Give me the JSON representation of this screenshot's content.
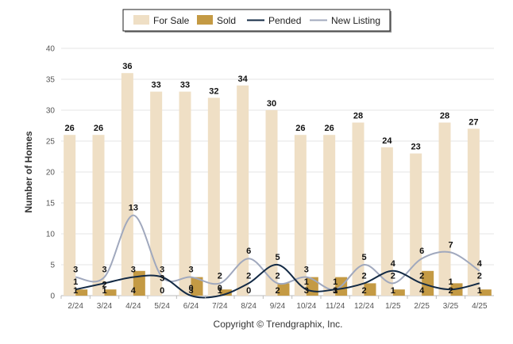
{
  "chart_data": {
    "type": "bar",
    "title": "",
    "xlabel": "",
    "ylabel": "Number of Homes",
    "ylim": [
      0,
      40
    ],
    "yticks": [
      0,
      5,
      10,
      15,
      20,
      25,
      30,
      35,
      40
    ],
    "grid": true,
    "legend_position": "top",
    "categories": [
      "2/24",
      "3/24",
      "4/24",
      "5/24",
      "6/24",
      "7/24",
      "8/24",
      "9/24",
      "10/24",
      "11/24",
      "12/24",
      "1/25",
      "2/25",
      "3/25",
      "4/25"
    ],
    "series": [
      {
        "name": "For Sale",
        "kind": "bar",
        "color": "#efdfc5",
        "values": [
          26,
          26,
          36,
          33,
          33,
          32,
          34,
          30,
          26,
          26,
          28,
          24,
          23,
          28,
          27
        ]
      },
      {
        "name": "Sold",
        "kind": "bar",
        "color": "#c49a44",
        "values": [
          1,
          1,
          4,
          0,
          3,
          1,
          0,
          2,
          3,
          3,
          2,
          1,
          4,
          2,
          1
        ]
      },
      {
        "name": "Pended",
        "kind": "line",
        "color": "#132a45",
        "values": [
          1,
          2,
          3,
          3,
          0,
          0,
          2,
          5,
          1,
          1,
          2,
          4,
          2,
          1,
          2
        ]
      },
      {
        "name": "New Listing",
        "kind": "line",
        "color": "#a0a8bd",
        "values": [
          3,
          3,
          13,
          3,
          3,
          2,
          6,
          2,
          3,
          1,
          5,
          2,
          6,
          7,
          4
        ]
      }
    ]
  },
  "footer": {
    "copyright": "Copyright © Trendgraphix, Inc."
  }
}
